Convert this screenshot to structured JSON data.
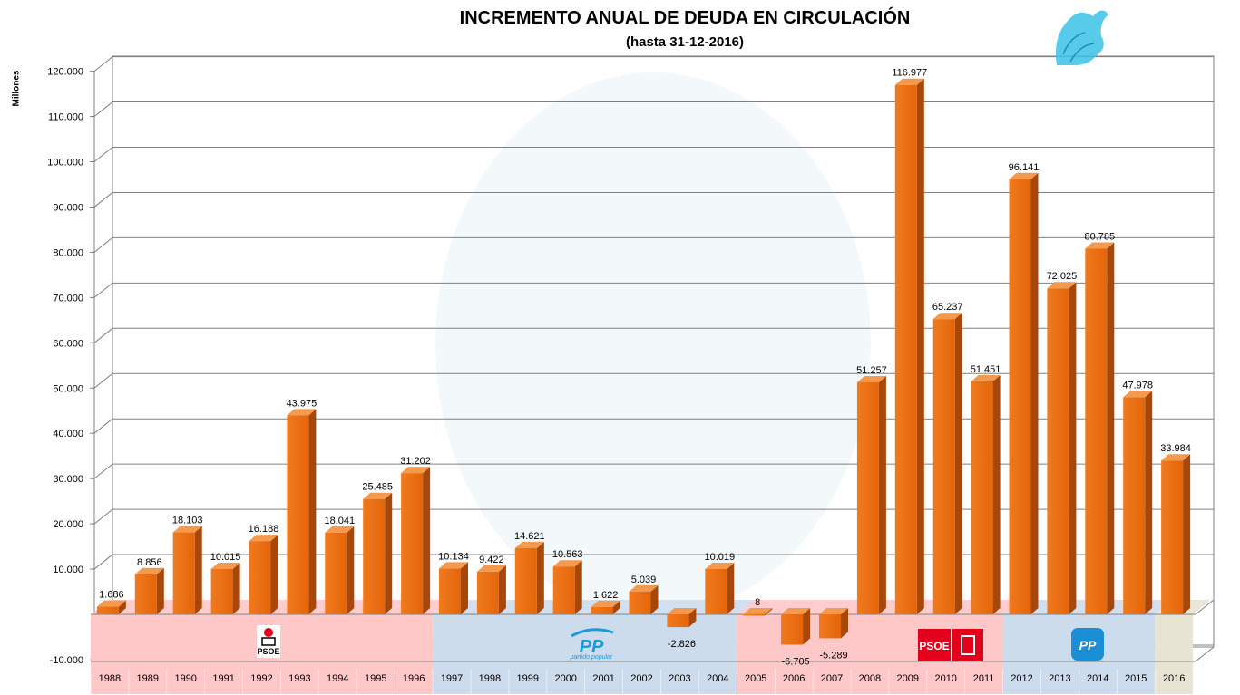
{
  "chart_data": {
    "type": "bar",
    "title": "INCREMENTO ANUAL DE DEUDA EN CIRCULACIÓN",
    "subtitle": "(hasta 31-12-2016)",
    "xlabel": "",
    "ylabel": "Millones",
    "ylim": [
      -10000,
      120000
    ],
    "yticks": [
      "-10.000",
      "10.000",
      "20.000",
      "30.000",
      "40.000",
      "50.000",
      "60.000",
      "70.000",
      "80.000",
      "90.000",
      "100.000",
      "110.000",
      "120.000"
    ],
    "ytick_values": [
      -10000,
      10000,
      20000,
      30000,
      40000,
      50000,
      60000,
      70000,
      80000,
      90000,
      100000,
      110000,
      120000
    ],
    "grid": true,
    "legend": "none",
    "bar_color": "#e8690b",
    "categories": [
      "1988",
      "1989",
      "1990",
      "1991",
      "1992",
      "1993",
      "1994",
      "1995",
      "1996",
      "1997",
      "1998",
      "1999",
      "2000",
      "2001",
      "2002",
      "2003",
      "2004",
      "2005",
      "2006",
      "2007",
      "2008",
      "2009",
      "2010",
      "2011",
      "2012",
      "2013",
      "2014",
      "2015",
      "2016"
    ],
    "values": [
      1686,
      8856,
      18103,
      10015,
      16188,
      43975,
      18041,
      25485,
      31202,
      10134,
      9422,
      14621,
      10563,
      1622,
      5039,
      -2826,
      10019,
      8,
      -6705,
      -5289,
      51257,
      116977,
      65237,
      51451,
      96141,
      72025,
      80785,
      47978,
      33984
    ],
    "value_labels": [
      "1.686",
      "8.856",
      "18.103",
      "10.015",
      "16.188",
      "43.975",
      "18.041",
      "25.485",
      "31.202",
      "10.134",
      "9.422",
      "14.621",
      "10.563",
      "1.622",
      "5.039",
      "-2.826",
      "10.019",
      "8",
      "-6.705",
      "-5.289",
      "51.257",
      "116.977",
      "65.237",
      "51.451",
      "96.141",
      "72.025",
      "80.785",
      "47.978",
      "33.984"
    ],
    "periods": [
      {
        "party": "PSOE",
        "from": "1988",
        "to": "1996",
        "color": "#ffc8c8"
      },
      {
        "party": "PP",
        "from": "1997",
        "to": "2004",
        "color": "#cddcec"
      },
      {
        "party": "PSOE",
        "from": "2005",
        "to": "2011",
        "color": "#ffc8c8"
      },
      {
        "party": "PP",
        "from": "2012",
        "to": "2015",
        "color": "#cddcec"
      },
      {
        "party": "",
        "from": "2016",
        "to": "2016",
        "color": "#e8e4d4"
      }
    ],
    "logos": {
      "psoe_1": "PSOE",
      "pp_1": "PP",
      "pp_1_sub": "partido popular",
      "psoe_2": "PSOE",
      "pp_2": "PP"
    }
  }
}
